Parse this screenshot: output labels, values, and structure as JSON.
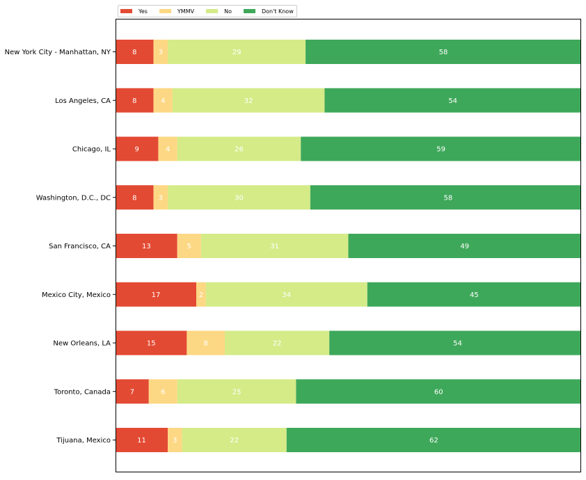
{
  "chart_data": {
    "type": "bar",
    "orientation": "horizontal",
    "stacked": true,
    "categories": [
      "New York City - Manhattan, NY",
      "Los Angeles, CA",
      "Chicago, IL",
      "Washington, D.C., DC",
      "San Francisco, CA",
      "Mexico City, Mexico",
      "New Orleans, LA",
      "Toronto, Canada",
      "Tijuana, Mexico"
    ],
    "series": [
      {
        "name": "Yes",
        "color": "#e34a33",
        "values": [
          8,
          8,
          9,
          8,
          13,
          17,
          15,
          7,
          11
        ]
      },
      {
        "name": "YMMV",
        "color": "#fdd884",
        "values": [
          3,
          4,
          4,
          3,
          5,
          2,
          8,
          6,
          3
        ]
      },
      {
        "name": "No",
        "color": "#d4eb88",
        "values": [
          29,
          32,
          26,
          30,
          31,
          34,
          22,
          25,
          22
        ]
      },
      {
        "name": "Don't Know",
        "color": "#3ea85a",
        "values": [
          58,
          54,
          59,
          58,
          49,
          45,
          54,
          60,
          62
        ]
      }
    ],
    "xlim": [
      0,
      98
    ],
    "x_axis_visible": false,
    "grid": false,
    "legend_position": "top-left, above plot"
  }
}
